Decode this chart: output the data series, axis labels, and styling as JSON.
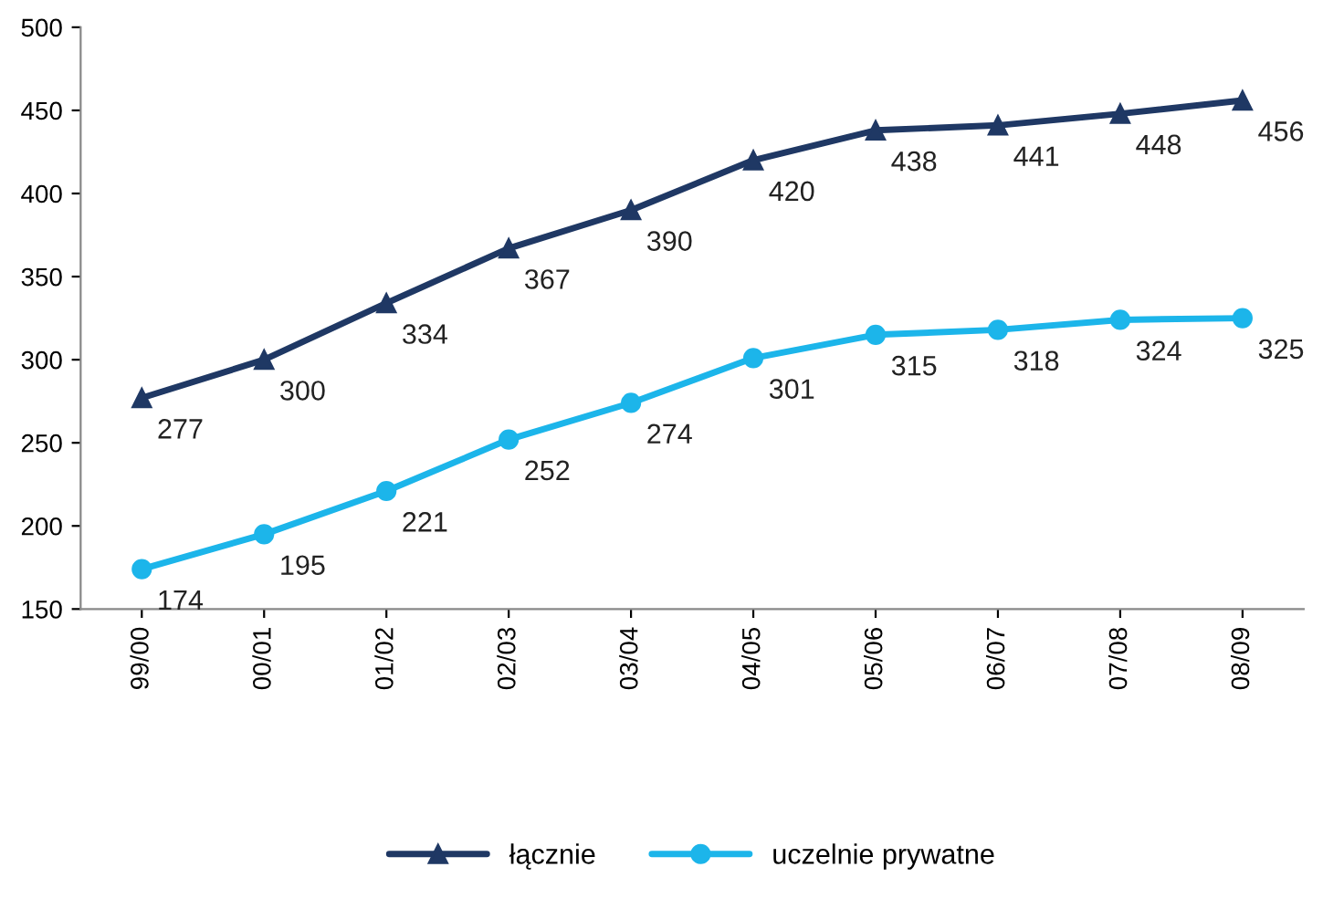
{
  "chart_data": {
    "type": "line",
    "categories": [
      "99/00",
      "00/01",
      "01/02",
      "02/03",
      "03/04",
      "04/05",
      "05/06",
      "06/07",
      "07/08",
      "08/09"
    ],
    "series": [
      {
        "name": "łącznie",
        "color": "#1f3864",
        "marker": "triangle",
        "values": [
          277,
          300,
          334,
          367,
          390,
          420,
          438,
          441,
          448,
          456
        ]
      },
      {
        "name": "uczelnie prywatne",
        "color": "#1cb5ea",
        "marker": "circle",
        "values": [
          174,
          195,
          221,
          252,
          274,
          301,
          315,
          318,
          324,
          325
        ]
      }
    ],
    "ylim": [
      150,
      500
    ],
    "yticks": [
      150,
      200,
      250,
      300,
      350,
      400,
      450,
      500
    ],
    "grid": false,
    "legend": "bottom",
    "data_labels": true,
    "line_style": "solid"
  }
}
